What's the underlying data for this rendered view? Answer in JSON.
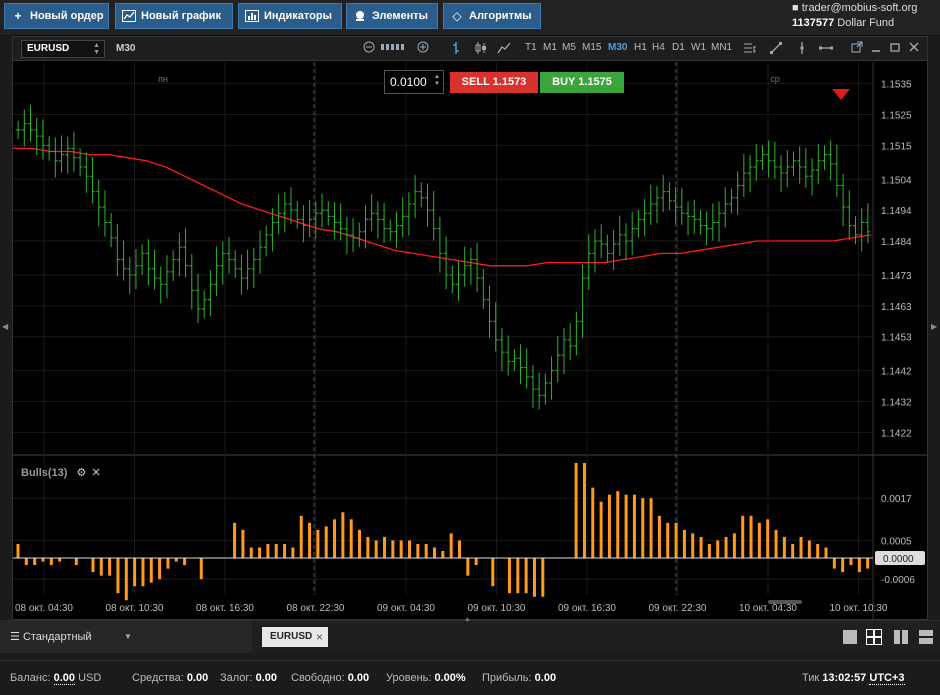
{
  "toolbar": {
    "new_order": "Новый ордер",
    "new_chart": "Новый график",
    "indicators": "Индикаторы",
    "elements": "Элементы",
    "algorithms": "Алгоритмы"
  },
  "account": {
    "email": "trader@mobius-soft.org",
    "number": "1137577",
    "name": "Dollar Fund"
  },
  "chart_header": {
    "symbol": "EURUSD",
    "timeframe": "M30",
    "timeframes": [
      "T1",
      "M1",
      "M5",
      "M15",
      "M30",
      "H1",
      "H4",
      "D1",
      "W1",
      "MN1"
    ],
    "active_timeframe": "M30"
  },
  "trade": {
    "lot": "0.0100",
    "sell_label": "SELL",
    "sell_price": "1.1573",
    "buy_label": "BUY",
    "buy_price": "1.1575"
  },
  "day_labels": [
    {
      "text": "пн",
      "slot": 1
    },
    {
      "text": "ср",
      "slot": 3
    }
  ],
  "indicator": {
    "name": "Bulls(13)",
    "current_value": "0.0000"
  },
  "tabbar": {
    "layout": "Стандартный",
    "symbol_tab": "EURUSD"
  },
  "status": {
    "balance_label": "Баланс:",
    "balance_value": "0.00",
    "currency": "USD",
    "funds_label": "Средства:",
    "funds_value": "0.00",
    "margin_label": "Залог:",
    "margin_value": "0.00",
    "free_label": "Свободно:",
    "free_value": "0.00",
    "level_label": "Уровень:",
    "level_value": "0.00%",
    "profit_label": "Прибыль:",
    "profit_value": "0.00",
    "tick_label": "Тик",
    "time": "13:02:57",
    "timezone": "UTC+3"
  },
  "colors": {
    "bull_bar": "#2fb32f",
    "ma_line": "#ff1a1a",
    "histogram": "#ff9a1e",
    "sell": "#d9312b",
    "buy": "#3aa53a",
    "price_marker": "#e21a1a"
  },
  "chart_data": [
    {
      "type": "ohlc",
      "symbol": "EURUSD",
      "timeframe": "M30",
      "y_ticks": [
        "1.1535",
        "1.1525",
        "1.1515",
        "1.1504",
        "1.1494",
        "1.1484",
        "1.1473",
        "1.1463",
        "1.1453",
        "1.1442",
        "1.1432",
        "1.1422"
      ],
      "ylim": [
        1.1415,
        1.1542
      ],
      "close": [
        1.152,
        1.1522,
        1.152,
        1.1518,
        1.1515,
        1.1513,
        1.151,
        1.1512,
        1.1514,
        1.1511,
        1.1508,
        1.1505,
        1.15,
        1.1495,
        1.149,
        1.1485,
        1.1478,
        1.1475,
        1.1473,
        1.1476,
        1.148,
        1.1475,
        1.1472,
        1.147,
        1.1474,
        1.1478,
        1.1482,
        1.1476,
        1.1468,
        1.1462,
        1.1465,
        1.147,
        1.1476,
        1.148,
        1.1478,
        1.1475,
        1.1472,
        1.1475,
        1.1478,
        1.1482,
        1.1486,
        1.149,
        1.1493,
        1.1496,
        1.1494,
        1.1491,
        1.1489,
        1.1491,
        1.1493,
        1.1494,
        1.1492,
        1.149,
        1.1488,
        1.1486,
        1.1485,
        1.1487,
        1.1491,
        1.1493,
        1.1491,
        1.1488,
        1.1487,
        1.1489,
        1.1492,
        1.1496,
        1.15,
        1.1498,
        1.1494,
        1.1488,
        1.148,
        1.1473,
        1.147,
        1.1473,
        1.1476,
        1.1478,
        1.1472,
        1.1465,
        1.1458,
        1.1452,
        1.1448,
        1.1445,
        1.1446,
        1.1443,
        1.144,
        1.1436,
        1.1434,
        1.1438,
        1.1442,
        1.1447,
        1.1452,
        1.145,
        1.1458,
        1.1472,
        1.148,
        1.1484,
        1.1483,
        1.148,
        1.1483,
        1.1486,
        1.1484,
        1.1488,
        1.1491,
        1.1493,
        1.1496,
        1.1498,
        1.15,
        1.1497,
        1.1495,
        1.1493,
        1.1492,
        1.1491,
        1.1489,
        1.1488,
        1.149,
        1.1493,
        1.1496,
        1.1498,
        1.1502,
        1.1506,
        1.1508,
        1.151,
        1.1512,
        1.151,
        1.1508,
        1.1506,
        1.1508,
        1.151,
        1.1508,
        1.1505,
        1.1507,
        1.151,
        1.1512,
        1.1509,
        1.1502,
        1.1495,
        1.1489,
        1.1486,
        1.149,
        1.1487
      ]
    },
    {
      "type": "line",
      "name": "moving average",
      "values": [
        1.1514,
        1.1514,
        1.1513,
        1.1513,
        1.1512,
        1.1512,
        1.1511,
        1.151,
        1.1508,
        1.1505,
        1.1502,
        1.1499,
        1.1496,
        1.1494,
        1.1492,
        1.149,
        1.1488,
        1.1487,
        1.1485,
        1.1483,
        1.1481,
        1.148,
        1.1479,
        1.1478,
        1.1477,
        1.1476,
        1.1476,
        1.1476,
        1.1477,
        1.1477,
        1.1477,
        1.1477,
        1.1478,
        1.1479,
        1.148,
        1.148,
        1.1481,
        1.1482,
        1.1483,
        1.1484,
        1.1484,
        1.1484,
        1.1484,
        1.1484,
        1.1485,
        1.1486
      ]
    },
    {
      "type": "bar",
      "name": "Bulls(13)",
      "y_ticks": [
        "0.0017",
        "0.0005",
        "0.0000",
        "-0.0006"
      ],
      "ylim": [
        -0.00105,
        0.0027
      ],
      "values": [
        0.0004,
        -0.0002,
        -0.0002,
        -0.0001,
        -0.0002,
        -0.0001,
        0.0,
        -0.0002,
        0.0,
        -0.0004,
        -0.0005,
        -0.0005,
        -0.001,
        -0.0012,
        -0.0008,
        -0.0008,
        -0.0007,
        -0.0006,
        -0.0003,
        -0.0001,
        -0.0002,
        0.0,
        -0.0006,
        0.0,
        0.0,
        0.0,
        0.001,
        0.0008,
        0.0003,
        0.0003,
        0.0004,
        0.0004,
        0.0004,
        0.0003,
        0.0012,
        0.001,
        0.0008,
        0.0009,
        0.0011,
        0.0013,
        0.0011,
        0.0008,
        0.0006,
        0.0005,
        0.0006,
        0.0005,
        0.0005,
        0.0005,
        0.0004,
        0.0004,
        0.0003,
        0.0002,
        0.0007,
        0.0005,
        -0.0005,
        -0.0002,
        0.0,
        -0.0008,
        0.0,
        -0.001,
        -0.001,
        -0.001,
        -0.0011,
        -0.0011,
        0.0,
        0.0,
        0.0,
        0.0027,
        0.0027,
        0.002,
        0.0016,
        0.0018,
        0.0019,
        0.0018,
        0.0018,
        0.0017,
        0.0017,
        0.0012,
        0.001,
        0.001,
        0.0008,
        0.0007,
        0.0006,
        0.0004,
        0.0005,
        0.0006,
        0.0007,
        0.0012,
        0.0012,
        0.001,
        0.0011,
        0.0008,
        0.0006,
        0.0004,
        0.0006,
        0.0005,
        0.0004,
        0.0003,
        -0.0003,
        -0.0004,
        -0.0002,
        -0.0004,
        -0.0003
      ]
    }
  ],
  "x_ticks": [
    "08 окт. 04:30",
    "08 окт. 10:30",
    "08 окт. 16:30",
    "08 окт. 22:30",
    "09 окт. 04:30",
    "09 окт. 10:30",
    "09 окт. 16:30",
    "09 окт. 22:30",
    "10 окт. 04:30",
    "10 окт. 10:30"
  ]
}
